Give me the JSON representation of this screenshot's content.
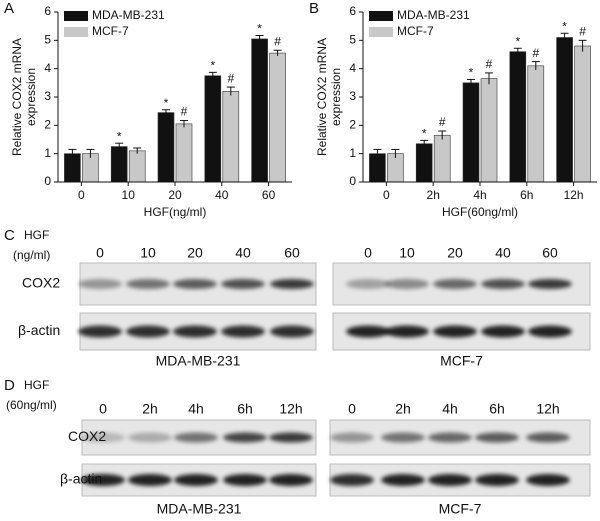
{
  "chart_data": [
    {
      "type": "bar",
      "panel": "A",
      "ylabel": [
        "Relative COX2 mRNA",
        "expression"
      ],
      "xlabel": "HGF(ng/ml)",
      "categories": [
        "0",
        "10",
        "20",
        "40",
        "60"
      ],
      "series": [
        {
          "name": "MDA-MB-231",
          "color": "#111111",
          "values": [
            1.0,
            1.25,
            2.45,
            3.75,
            5.05
          ],
          "errors": [
            0.15,
            0.12,
            0.1,
            0.12,
            0.12
          ],
          "markers": [
            null,
            "*",
            "*",
            "*",
            "*"
          ]
        },
        {
          "name": "MCF-7",
          "color": "#c8c8c8",
          "values": [
            1.0,
            1.1,
            2.05,
            3.2,
            4.55
          ],
          "errors": [
            0.15,
            0.1,
            0.12,
            0.15,
            0.1
          ],
          "markers": [
            null,
            null,
            "#",
            "#",
            "#"
          ]
        }
      ],
      "ylim": [
        0,
        6
      ],
      "yticks": [
        0,
        1,
        2,
        3,
        4,
        5,
        6
      ],
      "legend": "top-left"
    },
    {
      "type": "bar",
      "panel": "B",
      "ylabel": [
        "Relative COX2 mRNA",
        "expression"
      ],
      "xlabel": "HGF(60ng/ml)",
      "categories": [
        "0",
        "2h",
        "4h",
        "6h",
        "12h"
      ],
      "series": [
        {
          "name": "MDA-MB-231",
          "color": "#111111",
          "values": [
            1.0,
            1.35,
            3.5,
            4.6,
            5.1
          ],
          "errors": [
            0.15,
            0.12,
            0.12,
            0.12,
            0.15
          ],
          "markers": [
            null,
            "*",
            "*",
            "*",
            "*"
          ]
        },
        {
          "name": "MCF-7",
          "color": "#c8c8c8",
          "values": [
            1.0,
            1.65,
            3.65,
            4.1,
            4.8
          ],
          "errors": [
            0.15,
            0.15,
            0.2,
            0.15,
            0.2
          ],
          "markers": [
            null,
            "#",
            "#",
            "#",
            "#"
          ]
        }
      ],
      "ylim": [
        0,
        6
      ],
      "yticks": [
        0,
        1,
        2,
        3,
        4,
        5,
        6
      ],
      "legend": "top-left"
    }
  ],
  "blots": [
    {
      "panel": "C",
      "treatment": "HGF",
      "unit": "(ng/ml)",
      "lanes": [
        "0",
        "10",
        "20",
        "40",
        "60"
      ],
      "rows": [
        "COX2",
        "β-actin"
      ],
      "cell_lines": [
        "MDA-MB-231",
        "MCF-7"
      ]
    },
    {
      "panel": "D",
      "treatment": "HGF",
      "unit": "(60ng/ml)",
      "lanes": [
        "0",
        "2h",
        "4h",
        "6h",
        "12h"
      ],
      "rows": [
        "COX2",
        "β-actin"
      ],
      "cell_lines": [
        "MDA-MB-231",
        "MCF-7"
      ]
    }
  ]
}
